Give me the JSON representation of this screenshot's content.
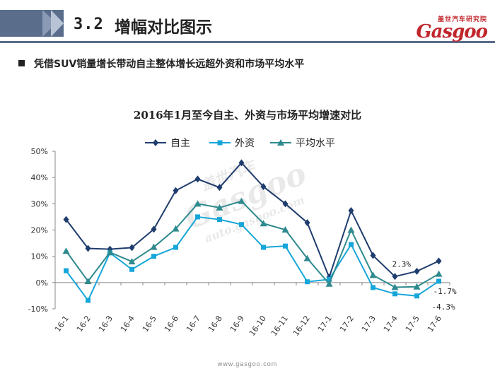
{
  "header": {
    "section_num": "3.2",
    "section_title": "增幅对比图示",
    "logo_cn": "盖世汽车研究院",
    "logo_word": "Gasgoo",
    "brand_color": "#c0272d"
  },
  "bullet": {
    "text": "凭借SUV销量增长带动自主整体增长远超外资和市场平均水平"
  },
  "watermark": {
    "cn": "盖世汽车",
    "word": "Gasgoo",
    "url": "auto.gasgoo.com"
  },
  "footer": {
    "url": "www.gasgoo.com"
  },
  "chart_data": {
    "type": "line",
    "title": "2016年1月至今自主、外资与市场平均增速对比",
    "xlabel": "",
    "ylabel": "",
    "ylim": [
      -0.1,
      0.5
    ],
    "yticks": [
      -0.1,
      0.0,
      0.1,
      0.2,
      0.3,
      0.4,
      0.5
    ],
    "ytick_labels": [
      "-10%",
      "0%",
      "10%",
      "20%",
      "30%",
      "40%",
      "50%"
    ],
    "grid": false,
    "legend_position": "top",
    "categories": [
      "16-1",
      "16-2",
      "16-3",
      "16-4",
      "16-5",
      "16-6",
      "16-7",
      "16-8",
      "16-9",
      "16-10",
      "16-11",
      "16-12",
      "17-1",
      "17-2",
      "17-3",
      "17-4",
      "17-5",
      "17-6"
    ],
    "series": [
      {
        "name": "自主",
        "color": "#1f3c6e",
        "marker": "diamond",
        "values": [
          0.24,
          0.13,
          0.127,
          0.133,
          0.203,
          0.35,
          0.394,
          0.362,
          0.456,
          0.365,
          0.3,
          0.228,
          0.02,
          0.274,
          0.103,
          0.023,
          0.043,
          0.082
        ]
      },
      {
        "name": "外资",
        "color": "#17a6d9",
        "marker": "square",
        "values": [
          0.045,
          -0.068,
          0.113,
          0.05,
          0.1,
          0.134,
          0.25,
          0.24,
          0.221,
          0.134,
          0.139,
          0.003,
          0.012,
          0.145,
          -0.019,
          -0.043,
          -0.051,
          0.005
        ]
      },
      {
        "name": "平均水平",
        "color": "#2e8a8e",
        "marker": "triangle",
        "values": [
          0.12,
          0.005,
          0.115,
          0.08,
          0.135,
          0.205,
          0.3,
          0.285,
          0.31,
          0.225,
          0.201,
          0.092,
          -0.005,
          0.2,
          0.028,
          -0.018,
          -0.016,
          0.033
        ]
      }
    ],
    "annotations": [
      {
        "text": "2.3%",
        "category": "17-4",
        "value": 0.023
      },
      {
        "text": "-1.7%",
        "category": "17-6",
        "value": -0.017
      },
      {
        "text": "-4.3%",
        "category": "17-6",
        "value": -0.043
      }
    ]
  }
}
